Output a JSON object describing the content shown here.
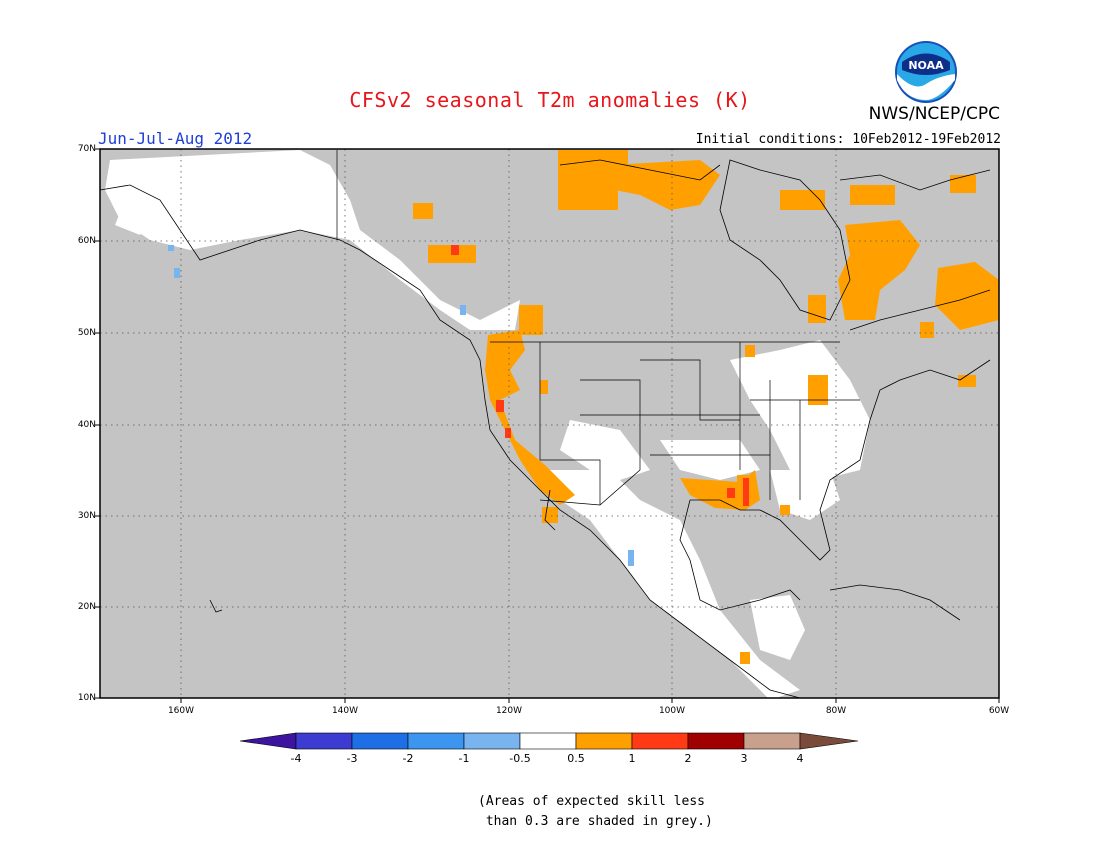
{
  "title": "CFSv2 seasonal T2m anomalies (K)",
  "organization": "NWS/NCEP/CPC",
  "logo_text": "NOAA",
  "season": "Jun-Jul-Aug 2012",
  "initial_conditions": "Initial conditions: 10Feb2012-19Feb2012",
  "map": {
    "region": "North America",
    "lat_range": [
      10,
      70
    ],
    "lon_range": [
      -170,
      -60
    ],
    "lat_labels": [
      "70N",
      "60N",
      "50N",
      "40N",
      "30N",
      "20N",
      "10N"
    ],
    "lon_labels": [
      "160W",
      "140W",
      "120W",
      "100W",
      "80W",
      "60W"
    ],
    "gridlines": "dotted",
    "colors": {
      "low_skill_grey": "#c4c4c4",
      "neutral_white": "#ffffff",
      "warm_0_5_to_1": "#ffa000",
      "warm_1_to_2": "#ff3a14",
      "cool_m1_to_m0_5": "#78b4f0"
    }
  },
  "colorbar": {
    "tick_labels": [
      "-4",
      "-3",
      "-2",
      "-1",
      "-0.5",
      "0.5",
      "1",
      "2",
      "3",
      "4"
    ],
    "colors": [
      "#3c14a0",
      "#3c3cd2",
      "#1e6ee6",
      "#3c96f0",
      "#78b4f0",
      "#ffffff",
      "#ffa000",
      "#ff3a14",
      "#a00000",
      "#c8a08c",
      "#7a4a3a"
    ]
  },
  "note": "(Areas of expected skill less\n than 0.3 are shaded in grey.)"
}
